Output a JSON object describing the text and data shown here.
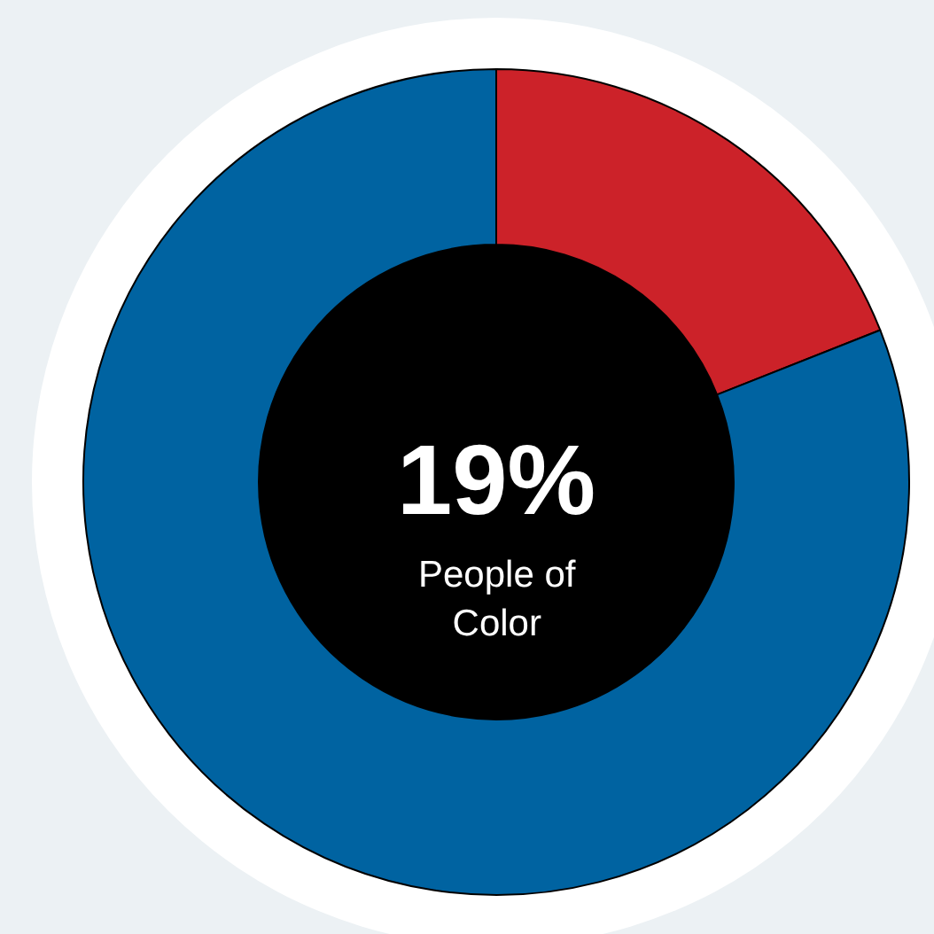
{
  "chart_data": {
    "type": "donut",
    "categories": [
      null,
      null
    ],
    "values": [
      19,
      81
    ],
    "colors": [
      "#cc2229",
      "#0063a1"
    ],
    "annotations": [
      "19%",
      "People of Color"
    ],
    "legend": false
  }
}
